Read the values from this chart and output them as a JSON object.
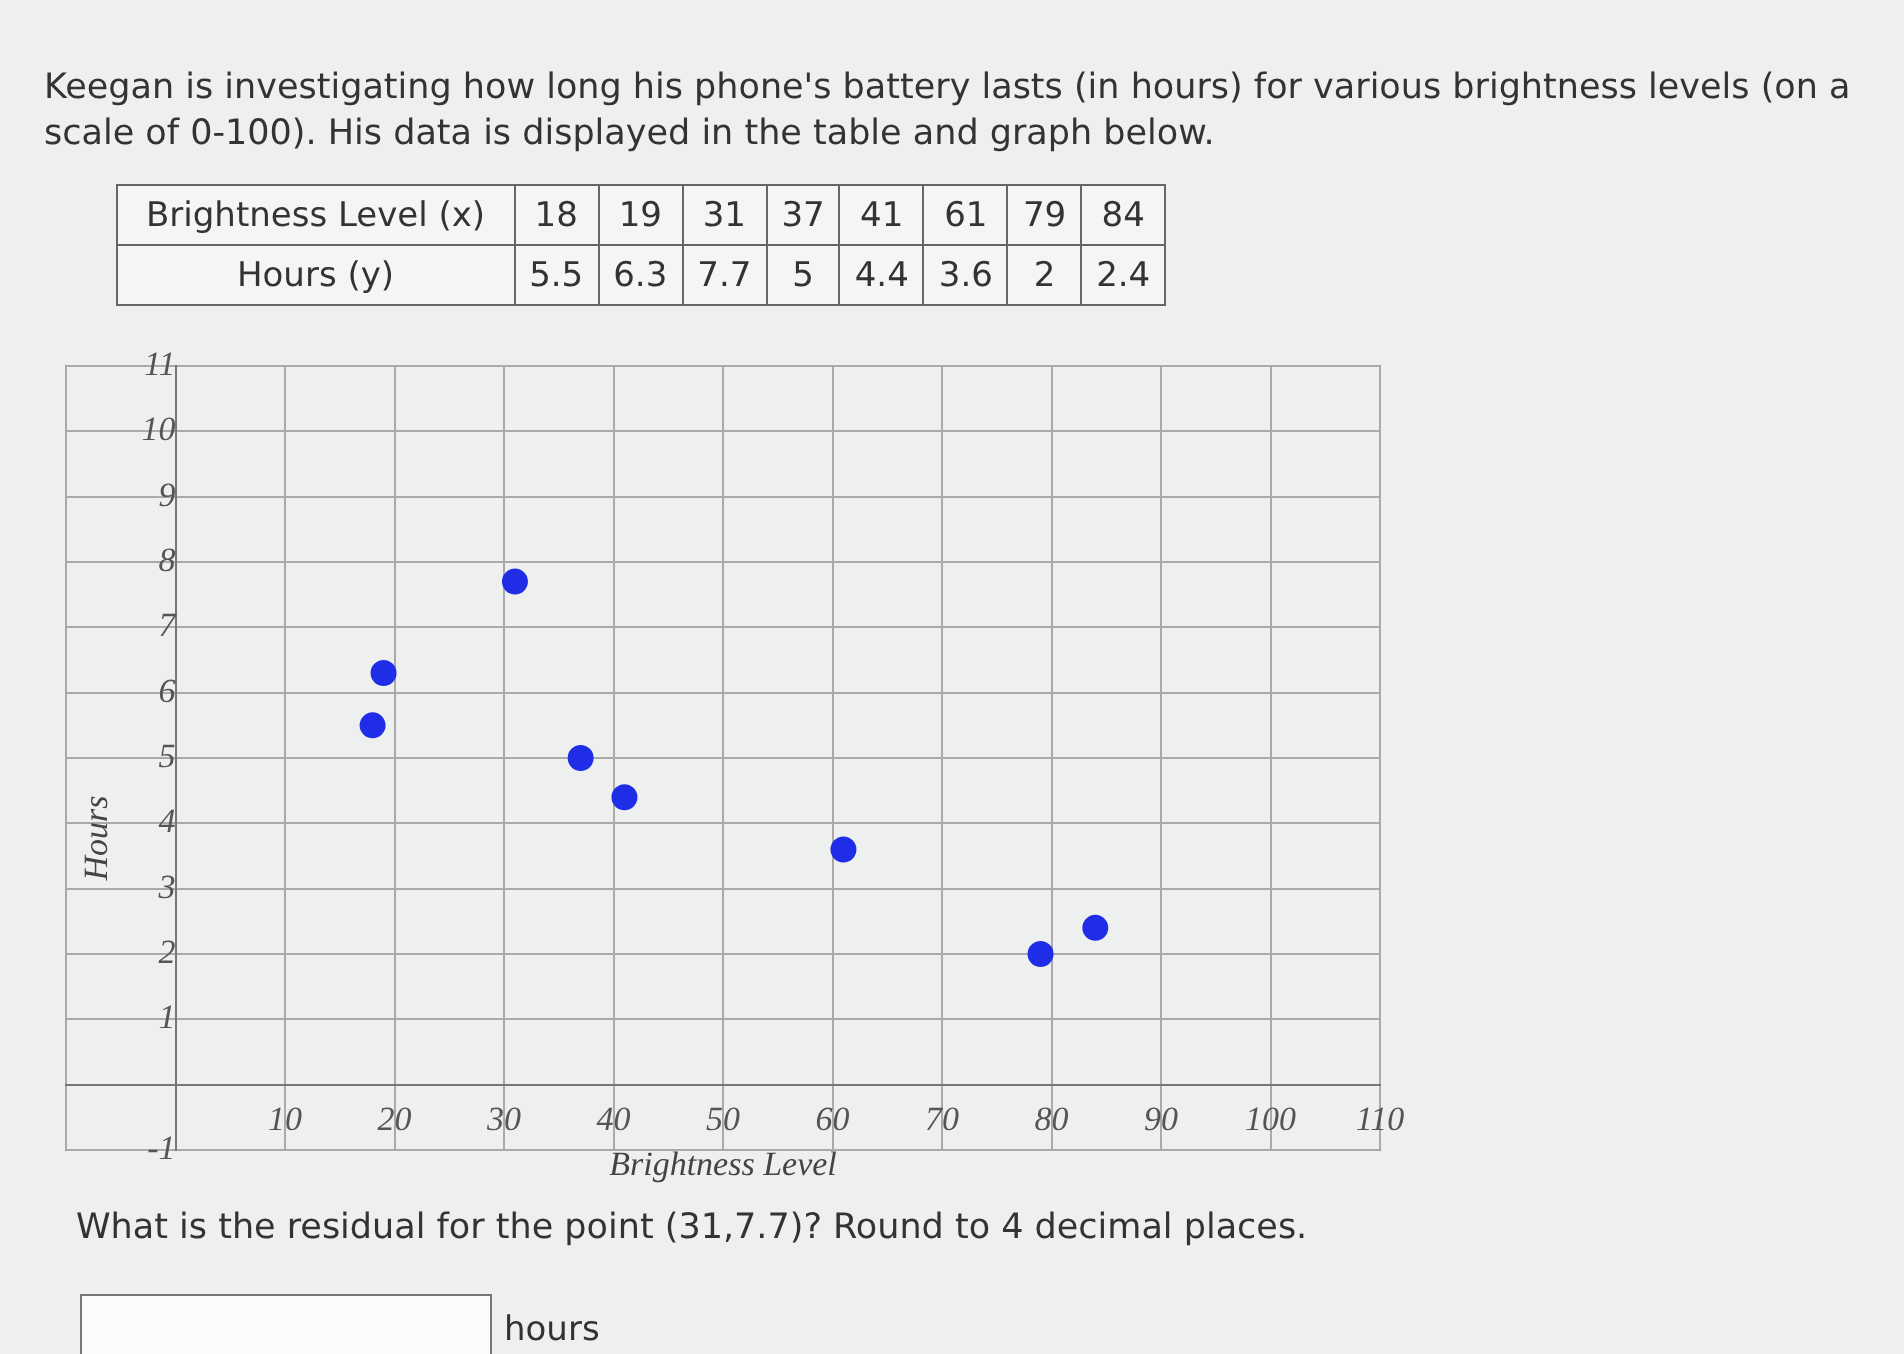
{
  "chart_data": {
    "type": "scatter",
    "title": "Keegan is investigating how long his phone's battery lasts (in hours) for various brightness levels (on a scale of 0-100). His data is displayed in the table and graph below.",
    "xlabel": "Brightness Level",
    "ylabel": "Hours",
    "annotations": [
      "Brightness Level (x)",
      "18",
      "19",
      "31",
      "37",
      "41",
      "61",
      "79",
      "84",
      "Hours (y)",
      "5.5",
      "6.3",
      "7.7",
      "5",
      "4.4",
      "3.6",
      "2",
      "2.4",
      "What is the residual for the point (31,7.7)? Round to 4 decimal places.",
      "hours"
    ],
    "x": [
      18,
      19,
      31,
      37,
      41,
      61,
      79,
      84
    ],
    "series": [
      {
        "color": "#1f2ee6",
        "values": [
          5.5,
          6.3,
          7.7,
          5,
          4.4,
          3.6,
          2,
          2.4
        ]
      }
    ],
    "xlim": [
      -10,
      110
    ],
    "xticks": [
      {
        "value": -10,
        "label": null
      },
      {
        "value": 0,
        "label": null
      },
      10,
      20,
      30,
      40,
      50,
      60,
      70,
      80,
      90,
      100,
      110
    ],
    "ylim": [
      -1,
      11
    ],
    "yticks": [
      -1,
      {
        "value": 0,
        "label": null
      },
      1,
      2,
      3,
      4,
      5,
      6,
      7,
      8,
      9,
      10,
      11
    ],
    "grid": true,
    "legend": false,
    "marker": "circle"
  }
}
